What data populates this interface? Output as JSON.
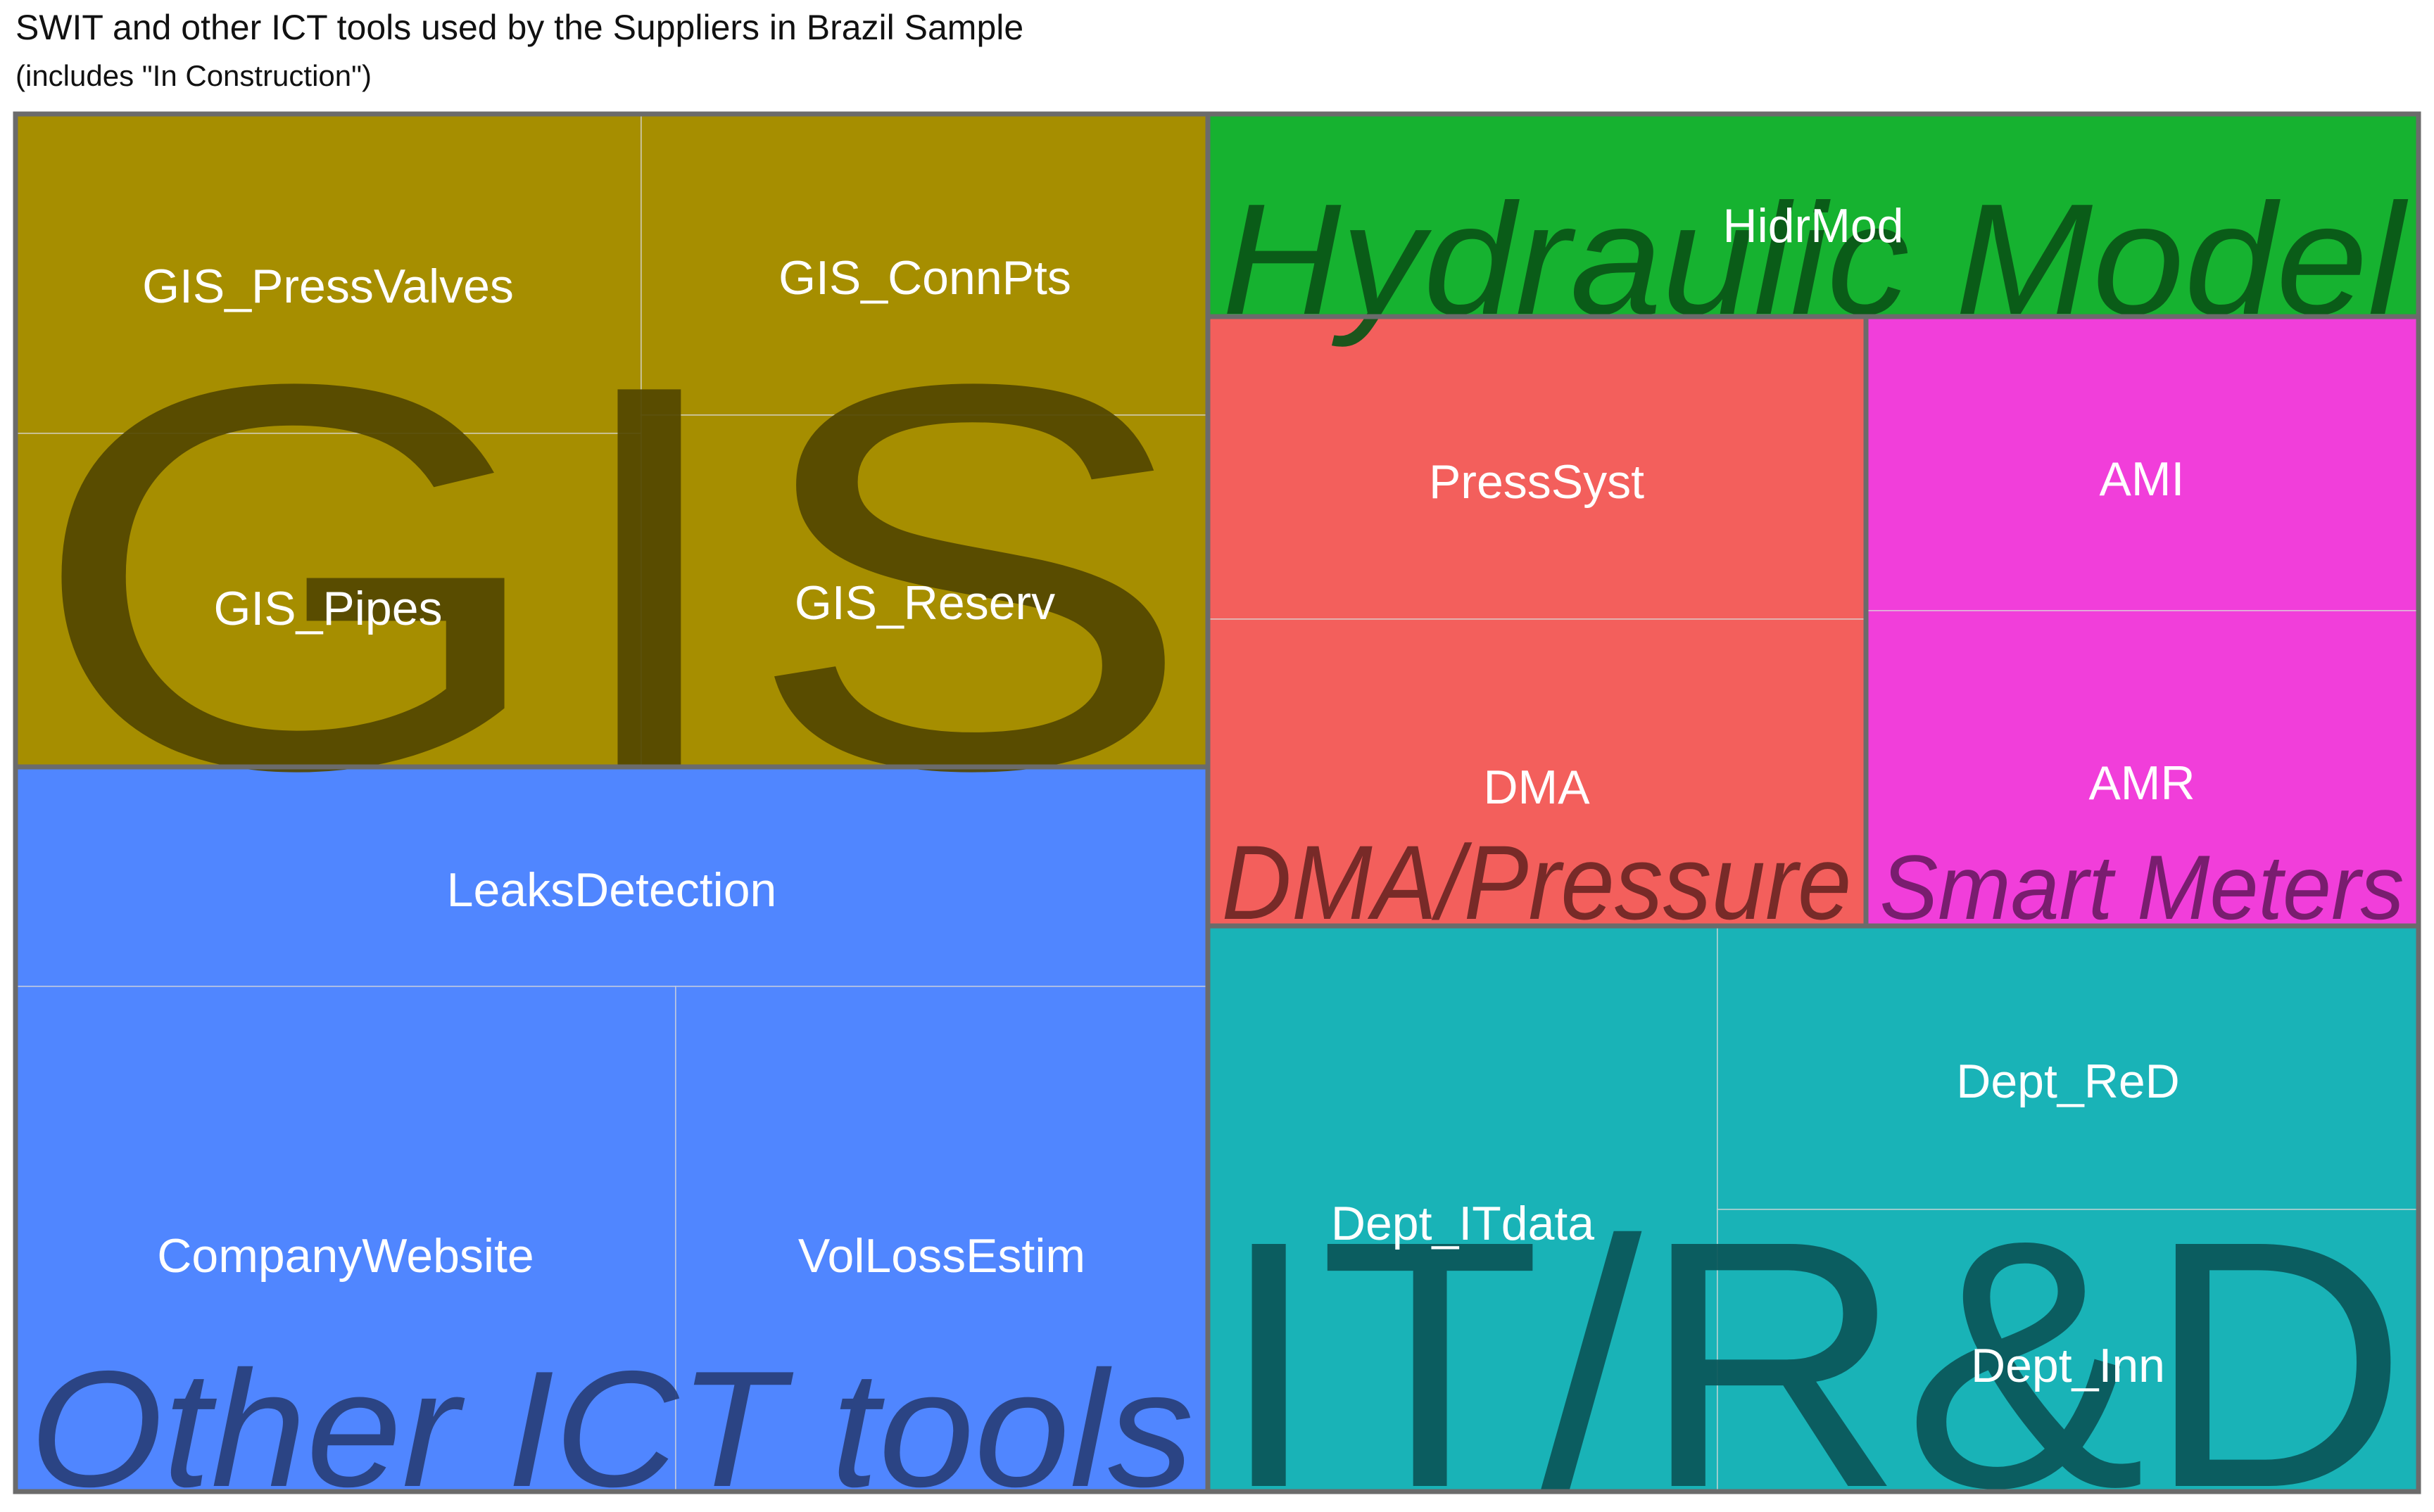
{
  "title": "SWIT and other ICT tools used by the Suppliers in Brazil Sample",
  "subtitle": "(includes \"In Construction\")",
  "chart_data": {
    "type": "treemap",
    "title": "SWIT and other ICT tools used by the Suppliers in Brazil Sample",
    "subtitle": "(includes \"In Construction\")",
    "groups": [
      {
        "name": "GIS",
        "color": "#A68E00",
        "label_color": "#524700",
        "items": [
          {
            "name": "GIS_PressValves"
          },
          {
            "name": "GIS_Pipes"
          },
          {
            "name": "GIS_ConnPts"
          },
          {
            "name": "GIS_Reserv"
          }
        ]
      },
      {
        "name": "Other ICT tools",
        "color": "#5086FF",
        "label_color": "#283F7A",
        "items": [
          {
            "name": "LeaksDetection"
          },
          {
            "name": "CompanyWebsite"
          },
          {
            "name": "VolLossEstim"
          }
        ]
      },
      {
        "name": "Hydraulic Model",
        "color": "#16B230",
        "label_color": "#0A5517",
        "items": [
          {
            "name": "HidrMod"
          }
        ]
      },
      {
        "name": "DMA/Pressure",
        "color": "#F35F5C",
        "label_color": "#6E2624",
        "items": [
          {
            "name": "PressSyst"
          },
          {
            "name": "DMA"
          }
        ]
      },
      {
        "name": "Smart Meters",
        "color": "#F13EDA",
        "label_color": "#6F1A66",
        "items": [
          {
            "name": "AMI"
          },
          {
            "name": "AMR"
          }
        ]
      },
      {
        "name": "IT/R&D",
        "color": "#19B3B7",
        "label_color": "#0A5658",
        "items": [
          {
            "name": "Dept_ITdata"
          },
          {
            "name": "Dept_ReD"
          },
          {
            "name": "Dept_Inn"
          }
        ]
      }
    ]
  }
}
